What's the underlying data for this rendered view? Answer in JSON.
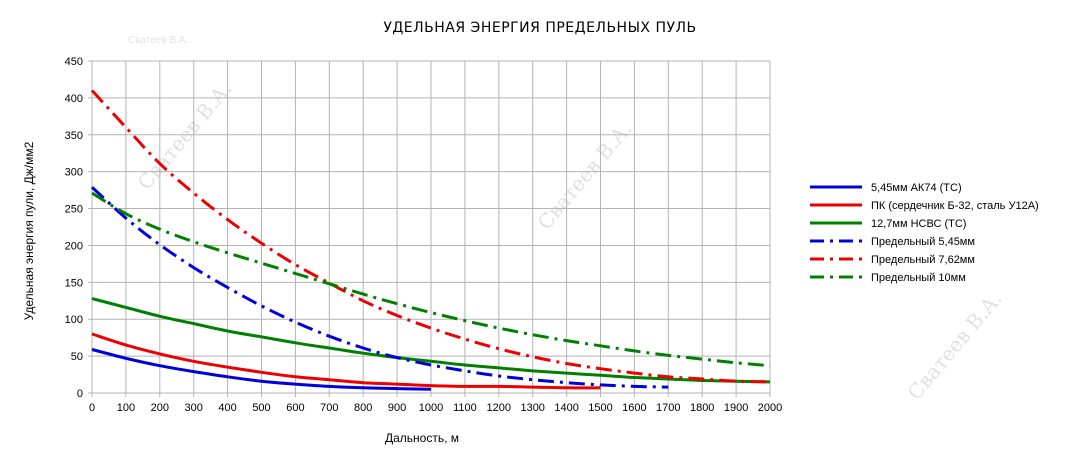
{
  "chart_data": {
    "type": "line",
    "title": "УДЕЛЬНАЯ ЭНЕРГИЯ ПРЕДЕЛЬНЫХ ПУЛЬ",
    "xlabel": "Дальность, м",
    "ylabel": "Удельная энергия пули, Дж/мм2",
    "xlim": [
      0,
      2000
    ],
    "ylim": [
      0,
      450
    ],
    "x_ticks": [
      0,
      100,
      200,
      300,
      400,
      500,
      600,
      700,
      800,
      900,
      1000,
      1100,
      1200,
      1300,
      1400,
      1500,
      1600,
      1700,
      1800,
      1900,
      2000
    ],
    "y_ticks": [
      0,
      50,
      100,
      150,
      200,
      250,
      300,
      350,
      400,
      450
    ],
    "grid": true,
    "legend_position": "right",
    "watermark": "Сватеев В.А.",
    "series": [
      {
        "name": "5,45мм АК74 (ТС)",
        "color": "#0000dd",
        "dash": "solid",
        "x": [
          0,
          100,
          200,
          300,
          400,
          500,
          600,
          700,
          800,
          900,
          1000
        ],
        "y": [
          59,
          47,
          37,
          29,
          22,
          16,
          12,
          9,
          7,
          6,
          5
        ]
      },
      {
        "name": "ПК (сердечник Б-32, сталь У12А)",
        "color": "#ee0000",
        "dash": "solid",
        "x": [
          0,
          100,
          200,
          300,
          400,
          500,
          600,
          700,
          800,
          900,
          1000,
          1100,
          1200,
          1300,
          1400,
          1500
        ],
        "y": [
          80,
          65,
          53,
          43,
          35,
          28,
          22,
          18,
          14,
          12,
          10,
          9,
          9,
          8,
          7,
          7
        ]
      },
      {
        "name": "12,7мм НСВС (ТС)",
        "color": "#008000",
        "dash": "solid",
        "x": [
          0,
          100,
          200,
          300,
          400,
          500,
          600,
          700,
          800,
          900,
          1000,
          1100,
          1200,
          1300,
          1400,
          1500,
          1600,
          1700,
          1800,
          1900,
          2000
        ],
        "y": [
          128,
          116,
          104,
          94,
          84,
          76,
          68,
          61,
          54,
          48,
          43,
          38,
          34,
          30,
          27,
          24,
          21,
          19,
          17,
          16,
          15
        ]
      },
      {
        "name": "Предельный 5,45мм",
        "color": "#0000dd",
        "dash": "dashdot",
        "x": [
          0,
          100,
          200,
          300,
          400,
          500,
          600,
          700,
          800,
          900,
          1000,
          1100,
          1200,
          1300,
          1400,
          1500,
          1600,
          1700
        ],
        "y": [
          279,
          237,
          201,
          170,
          143,
          118,
          96,
          77,
          61,
          48,
          38,
          30,
          23,
          18,
          14,
          11,
          9,
          8
        ]
      },
      {
        "name": "Предельный 7,62мм",
        "color": "#ee0000",
        "dash": "dashdot",
        "x": [
          0,
          100,
          200,
          300,
          400,
          500,
          600,
          700,
          800,
          900,
          1000,
          1100,
          1200,
          1300,
          1400,
          1500,
          1600,
          1700,
          1800,
          1900,
          2000
        ],
        "y": [
          410,
          360,
          311,
          271,
          235,
          203,
          174,
          149,
          125,
          105,
          88,
          73,
          60,
          49,
          40,
          33,
          27,
          22,
          19,
          16,
          15
        ]
      },
      {
        "name": "Предельный 10мм",
        "color": "#008000",
        "dash": "dashdot",
        "x": [
          0,
          100,
          200,
          300,
          400,
          500,
          600,
          700,
          800,
          900,
          1000,
          1100,
          1200,
          1300,
          1400,
          1500,
          1600,
          1700,
          1800,
          1900,
          2000
        ],
        "y": [
          271,
          243,
          222,
          205,
          190,
          176,
          162,
          148,
          134,
          121,
          109,
          98,
          88,
          79,
          71,
          64,
          57,
          51,
          46,
          41,
          37
        ]
      }
    ]
  }
}
